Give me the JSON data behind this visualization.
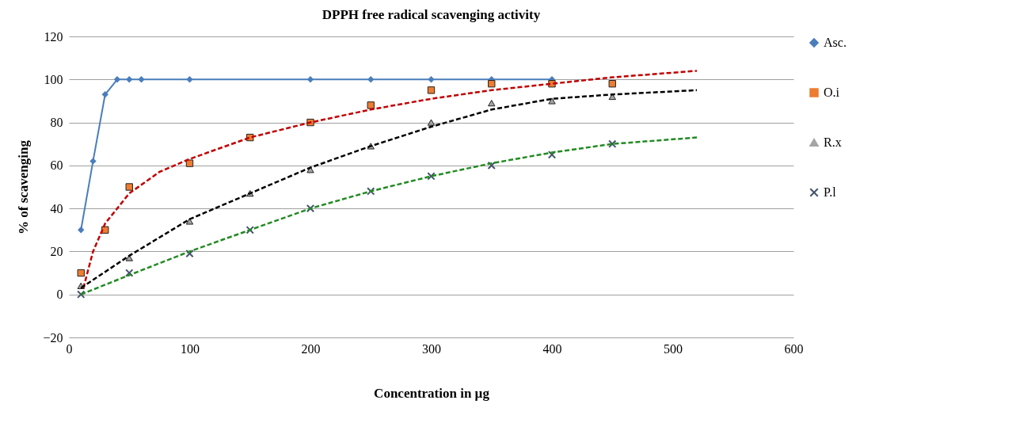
{
  "chart_data": {
    "type": "line",
    "title": "DPPH free radical scavenging activity",
    "xlabel": "Concentration in µg",
    "ylabel": "% of scavenging",
    "xlim": [
      0,
      600
    ],
    "xticks": [
      0,
      100,
      200,
      300,
      400,
      500,
      600
    ],
    "ylim": [
      -20,
      120
    ],
    "yticks": [
      -20,
      0,
      20,
      40,
      60,
      80,
      100,
      120
    ],
    "grid": "y",
    "legend": "right",
    "series": [
      {
        "name": "Asc.",
        "marker": "diamond",
        "color": "#4a7ebb",
        "x": [
          10,
          20,
          30,
          40,
          50,
          60,
          100,
          200,
          250,
          300,
          350,
          400
        ],
        "values": [
          30,
          62,
          93,
          100,
          100,
          100,
          100,
          100,
          100,
          100,
          100,
          100
        ]
      },
      {
        "name": "O.i",
        "type": "scatter",
        "marker": "square",
        "color": "#ed7d31",
        "x": [
          10,
          30,
          50,
          100,
          150,
          200,
          250,
          300,
          350,
          400,
          450
        ],
        "values": [
          10,
          30,
          50,
          61,
          73,
          80,
          88,
          95,
          98,
          98,
          98
        ]
      },
      {
        "name": "R.x",
        "type": "scatter",
        "marker": "triangle",
        "color": "#a5a5a5",
        "x": [
          10,
          50,
          100,
          150,
          200,
          250,
          300,
          350,
          400,
          450
        ],
        "values": [
          4,
          17,
          34,
          47,
          58,
          69,
          80,
          89,
          90,
          92
        ]
      },
      {
        "name": "P.l",
        "type": "scatter",
        "marker": "cross",
        "color": "#44546a",
        "x": [
          10,
          50,
          100,
          150,
          200,
          250,
          300,
          350,
          400,
          450
        ],
        "values": [
          0,
          10,
          19,
          30,
          40,
          48,
          55,
          60,
          65,
          70
        ]
      },
      {
        "line_style": "dashed",
        "color": "#c00000",
        "x": [
          12,
          20,
          30,
          50,
          75,
          100,
          150,
          200,
          250,
          300,
          350,
          400,
          450,
          520
        ],
        "values": [
          3,
          20,
          33,
          47,
          57,
          63,
          73,
          80,
          86,
          91,
          95,
          98,
          101,
          104
        ]
      },
      {
        "line_style": "dashed",
        "color": "#000000",
        "x": [
          10,
          50,
          100,
          150,
          200,
          250,
          300,
          350,
          400,
          450,
          520
        ],
        "values": [
          3,
          18,
          35,
          47,
          59,
          69,
          78,
          86,
          91,
          93,
          95
        ]
      },
      {
        "line_style": "dashed",
        "color": "#228b22",
        "x": [
          10,
          50,
          100,
          150,
          200,
          250,
          300,
          350,
          400,
          450,
          520
        ],
        "values": [
          0,
          9,
          20,
          30,
          40,
          48,
          55,
          61,
          66,
          70,
          73
        ]
      }
    ]
  }
}
